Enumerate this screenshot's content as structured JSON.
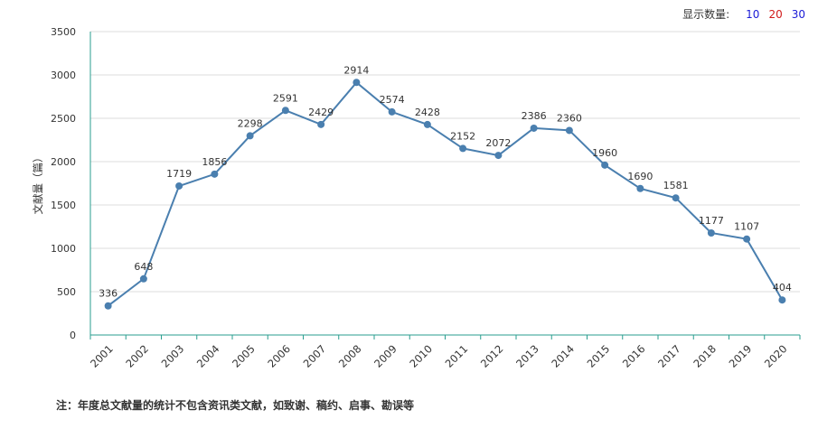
{
  "controls": {
    "label": "显示数量:",
    "options": [
      {
        "value": "10",
        "color": "#1b1bd6"
      },
      {
        "value": "20",
        "color": "#d11a1a"
      },
      {
        "value": "30",
        "color": "#1b1bd6"
      }
    ]
  },
  "note": "注：年度总文献量的统计不包含资讯类文献，如致谢、稿约、启事、勘误等",
  "chart_data": {
    "type": "line",
    "ylabel": "文献量（篇）",
    "xlabel": "",
    "ylim": [
      0,
      3500
    ],
    "yticks": [
      0,
      500,
      1000,
      1500,
      2000,
      2500,
      3000,
      3500
    ],
    "grid": true,
    "line_color": "#4a7faf",
    "x": [
      "2001",
      "2002",
      "2003",
      "2004",
      "2005",
      "2006",
      "2007",
      "2008",
      "2009",
      "2010",
      "2011",
      "2012",
      "2013",
      "2014",
      "2015",
      "2016",
      "2017",
      "2018",
      "2019",
      "2020"
    ],
    "values": [
      336,
      648,
      1719,
      1856,
      2298,
      2591,
      2429,
      2914,
      2574,
      2428,
      2152,
      2072,
      2386,
      2360,
      1960,
      1690,
      1581,
      1177,
      1107,
      404
    ]
  }
}
